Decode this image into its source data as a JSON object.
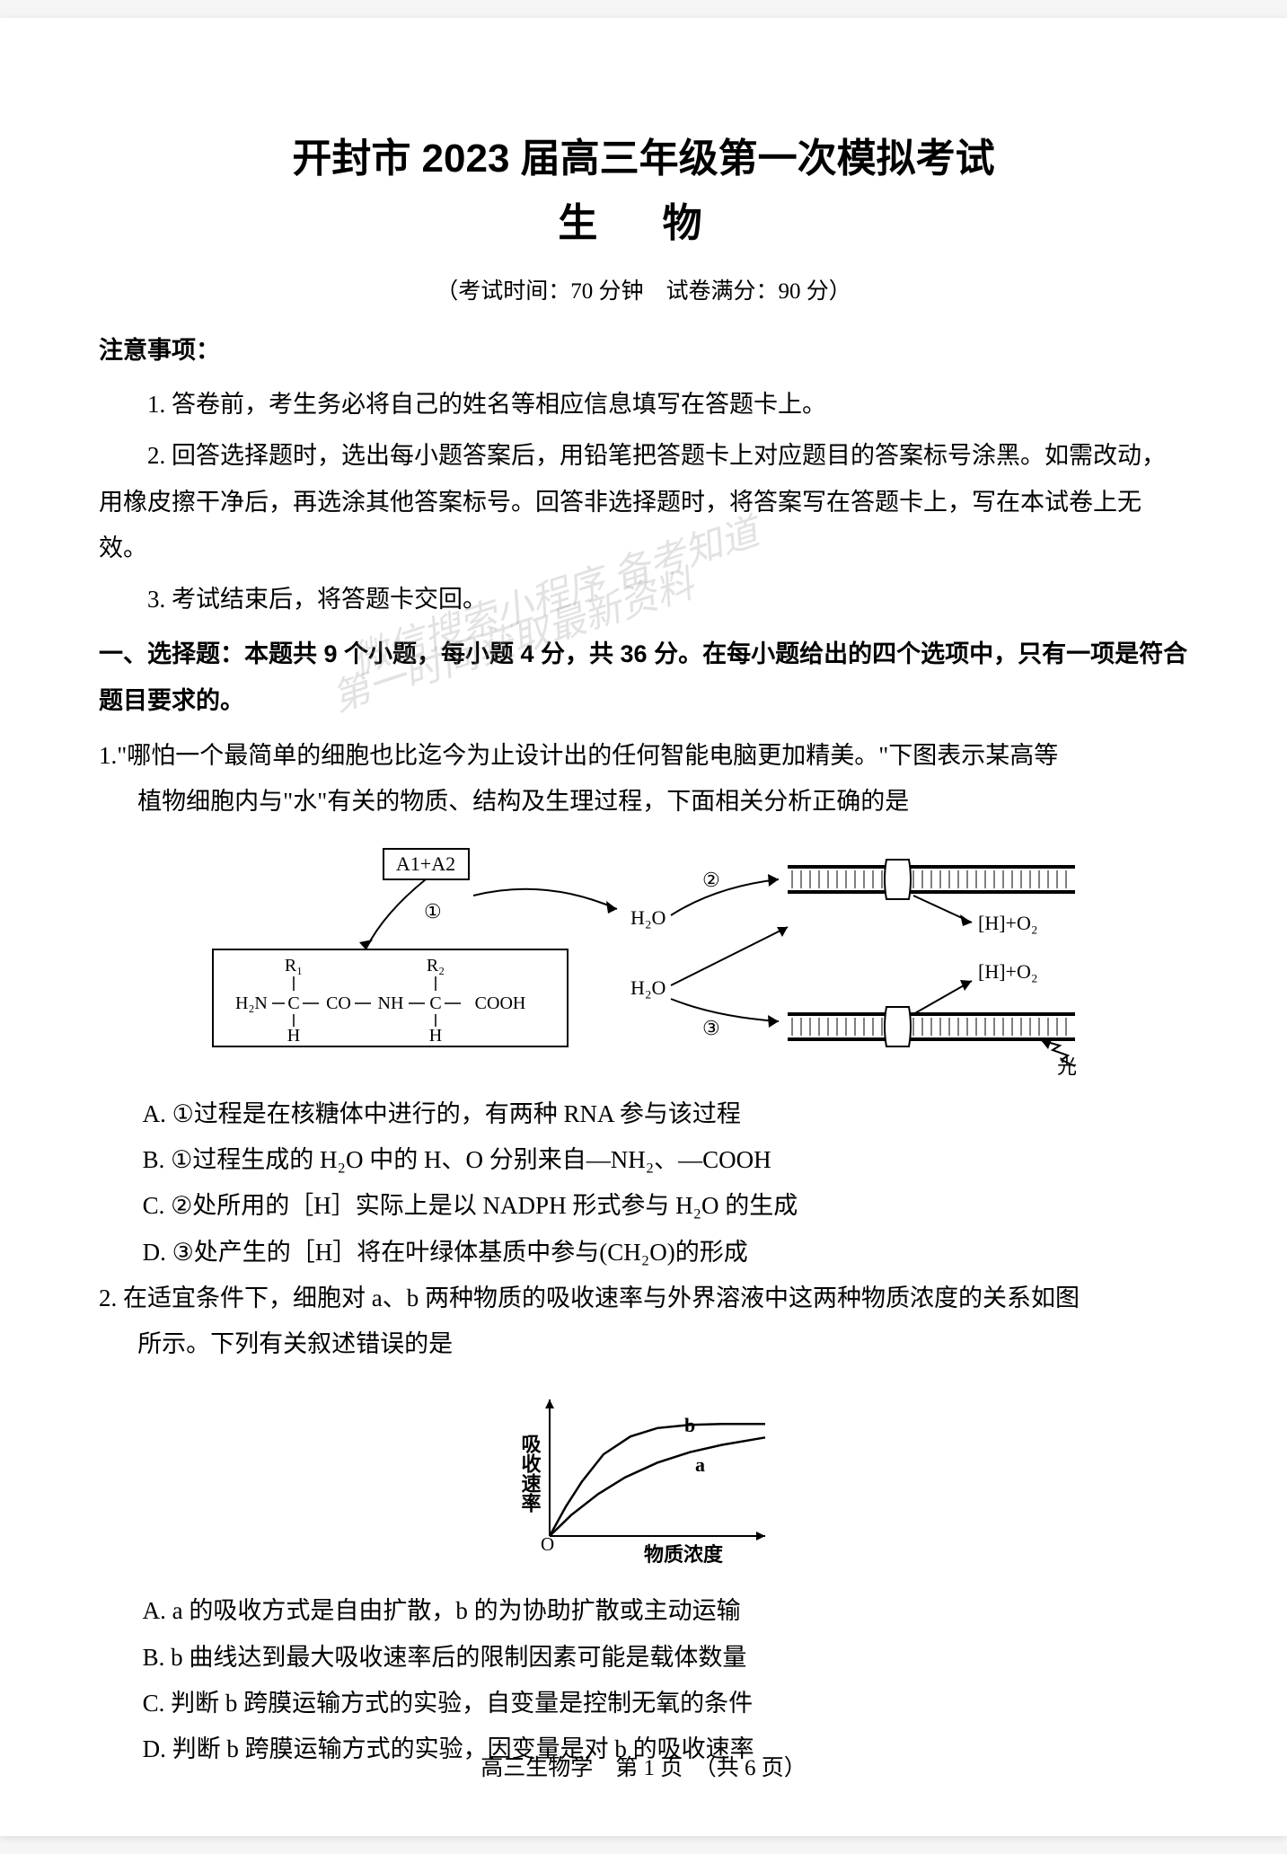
{
  "title": {
    "main": "开封市 2023 届高三年级第一次模拟考试",
    "subject": "生  物"
  },
  "examInfo": "（考试时间：70 分钟　试卷满分：90 分）",
  "notice": {
    "heading": "注意事项：",
    "items": [
      "1. 答卷前，考生务必将自己的姓名等相应信息填写在答题卡上。",
      "2. 回答选择题时，选出每小题答案后，用铅笔把答题卡上对应题目的答案标号涂黑。如需改动，用橡皮擦干净后，再选涂其他答案标号。回答非选择题时，将答案写在答题卡上，写在本试卷上无效。",
      "3. 考试结束后，将答题卡交回。"
    ]
  },
  "sectionHeading": "一、选择题：本题共 9 个小题，每小题 4 分，共 36 分。在每小题给出的四个选项中，只有一项是符合题目要求的。",
  "q1": {
    "stem": "1.\"哪怕一个最简单的细胞也比迄今为止设计出的任何智能电脑更加精美。\"下图表示某高等",
    "stemCont": "植物细胞内与\"水\"有关的物质、结构及生理过程，下面相关分析正确的是",
    "options": {
      "A": "A. ①过程是在核糖体中进行的，有两种 RNA 参与该过程",
      "B": "B. ①过程生成的 H₂O 中的 H、O 分别来自—NH₂、—COOH",
      "C": "C. ②处所用的［H］实际上是以 NADPH 形式参与 H₂O 的生成",
      "D": "D. ③处产生的［H］将在叶绿体基质中参与(CH₂O)的形成"
    },
    "diagram": {
      "label_A1A2": "A1+A2",
      "label_proc1": "①",
      "label_proc2": "②",
      "label_proc3": "③",
      "label_H2O_top": "H₂O",
      "label_H2O_mid": "H₂O",
      "label_HO2_a": "[H]+O₂",
      "label_HO2_b": "[H]+O₂",
      "label_light": "光",
      "peptide": {
        "R1": "R₁",
        "R2": "R₂",
        "H2N": "H₂N",
        "C": "C",
        "CO": "CO",
        "NH": "NH",
        "COOH": "COOH",
        "H": "H"
      },
      "colors": {
        "stroke": "#000000",
        "fill_none": "none"
      }
    }
  },
  "q2": {
    "stem": "2. 在适宜条件下，细胞对 a、b 两种物质的吸收速率与外界溶液中这两种物质浓度的关系如图",
    "stemCont": "所示。下列有关叙述错误的是",
    "chart": {
      "type": "line",
      "xlabel": "物质浓度",
      "ylabel": "吸收速率",
      "origin": "O",
      "curve_a_label": "a",
      "curve_b_label": "b",
      "x_range": [
        0,
        200
      ],
      "y_range": [
        0,
        120
      ],
      "curve_b_points": [
        [
          0,
          0
        ],
        [
          15,
          28
        ],
        [
          30,
          52
        ],
        [
          50,
          78
        ],
        [
          75,
          95
        ],
        [
          100,
          103
        ],
        [
          130,
          106
        ],
        [
          160,
          107
        ],
        [
          200,
          107
        ]
      ],
      "curve_a_points": [
        [
          0,
          0
        ],
        [
          20,
          20
        ],
        [
          45,
          40
        ],
        [
          70,
          56
        ],
        [
          100,
          70
        ],
        [
          130,
          80
        ],
        [
          160,
          87
        ],
        [
          200,
          94
        ]
      ],
      "stroke_color": "#000000",
      "axis_color": "#000000",
      "line_width": 2
    },
    "options": {
      "A": "A. a 的吸收方式是自由扩散，b 的为协助扩散或主动运输",
      "B": "B. b 曲线达到最大吸收速率后的限制因素可能是载体数量",
      "C": "C. 判断 b 跨膜运输方式的实验，自变量是控制无氧的条件",
      "D": "D. 判断 b 跨膜运输方式的实验，因变量是对 b 的吸收速率"
    }
  },
  "watermarks": {
    "line1": "微信搜索小程序 备考知道",
    "line2": "第一时间获取最新资料"
  },
  "footer": "高三生物学　第 1 页　（共 6 页）"
}
